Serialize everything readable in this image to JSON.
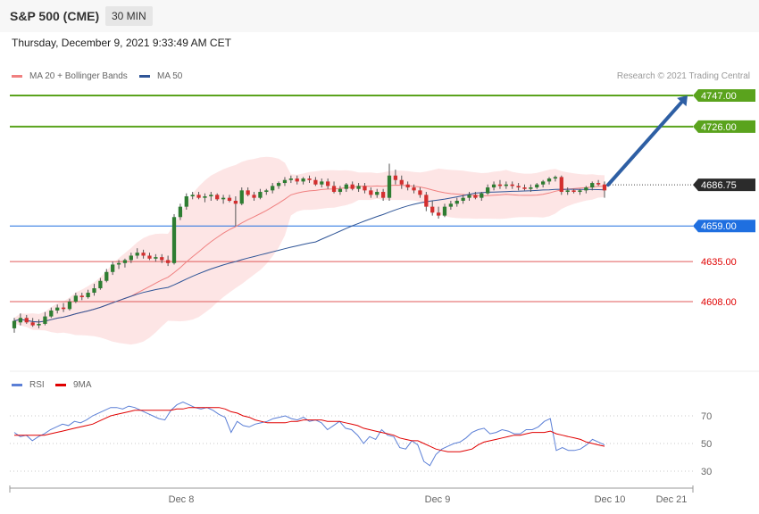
{
  "header": {
    "title": "S&P 500 (CME)",
    "timeframe": "30 MIN"
  },
  "datetime": "Thursday, December 9, 2021 9:33:49 AM CET",
  "credit": "Research © 2021 Trading Central",
  "legend": {
    "ma20": {
      "label": "MA 20 + Bollinger Bands",
      "color": "#f08080"
    },
    "ma50": {
      "label": "MA 50",
      "color": "#2f5597"
    },
    "rsi": {
      "label": "RSI",
      "color": "#5b7fd6"
    },
    "rsi9": {
      "label": "9MA",
      "color": "#e00000"
    }
  },
  "chart_data": [
    {
      "type": "candlestick",
      "current_price": 4686.75,
      "ylim": [
        4560,
        4760
      ],
      "levels": [
        {
          "value": 4747.0,
          "label": "4747.00",
          "kind": "resistance",
          "color": "#5aa31d"
        },
        {
          "value": 4726.0,
          "label": "4726.00",
          "kind": "resistance",
          "color": "#5aa31d"
        },
        {
          "value": 4686.75,
          "label": "4686.75",
          "kind": "current",
          "color": "#333333"
        },
        {
          "value": 4659.0,
          "label": "4659.00",
          "kind": "pivot",
          "color": "#1f6fe0"
        },
        {
          "value": 4635.0,
          "label": "4635.00",
          "kind": "support",
          "color": "#e05a5a"
        },
        {
          "value": 4608.0,
          "label": "4608.00",
          "kind": "support",
          "color": "#e05a5a"
        }
      ],
      "forecast_arrow": {
        "from": 4686.75,
        "to": 4747.0,
        "color": "#2e5fa4"
      },
      "x_ticks": [
        "Dec 8",
        "Dec 9",
        "Dec 10",
        "Dec 21"
      ],
      "candles": [
        [
          4590,
          4597,
          4587,
          4595
        ],
        [
          4594,
          4600,
          4592,
          4597
        ],
        [
          4597,
          4599,
          4593,
          4594
        ],
        [
          4594,
          4597,
          4591,
          4592
        ],
        [
          4592,
          4596,
          4590,
          4593
        ],
        [
          4593,
          4601,
          4592,
          4598
        ],
        [
          4598,
          4604,
          4597,
          4602
        ],
        [
          4602,
          4606,
          4600,
          4604
        ],
        [
          4604,
          4607,
          4601,
          4603
        ],
        [
          4603,
          4610,
          4602,
          4608
        ],
        [
          4608,
          4614,
          4607,
          4612
        ],
        [
          4612,
          4614,
          4609,
          4611
        ],
        [
          4611,
          4616,
          4610,
          4614
        ],
        [
          4614,
          4620,
          4612,
          4617
        ],
        [
          4617,
          4624,
          4616,
          4622
        ],
        [
          4622,
          4630,
          4621,
          4628
        ],
        [
          4628,
          4635,
          4626,
          4633
        ],
        [
          4633,
          4636,
          4630,
          4634
        ],
        [
          4634,
          4637,
          4631,
          4636
        ],
        [
          4636,
          4641,
          4634,
          4639
        ],
        [
          4639,
          4644,
          4637,
          4641
        ],
        [
          4641,
          4643,
          4637,
          4639
        ],
        [
          4639,
          4641,
          4636,
          4637
        ],
        [
          4637,
          4640,
          4635,
          4638
        ],
        [
          4638,
          4640,
          4634,
          4636
        ],
        [
          4636,
          4639,
          4632,
          4634
        ],
        [
          4634,
          4667,
          4633,
          4665
        ],
        [
          4665,
          4674,
          4663,
          4672
        ],
        [
          4672,
          4681,
          4670,
          4679
        ],
        [
          4679,
          4682,
          4677,
          4680
        ],
        [
          4680,
          4682,
          4677,
          4678
        ],
        [
          4678,
          4681,
          4675,
          4679
        ],
        [
          4679,
          4682,
          4676,
          4680
        ],
        [
          4680,
          4681,
          4676,
          4677
        ],
        [
          4677,
          4680,
          4674,
          4678
        ],
        [
          4678,
          4680,
          4675,
          4676
        ],
        [
          4676,
          4679,
          4659,
          4674
        ],
        [
          4674,
          4685,
          4673,
          4683
        ],
        [
          4683,
          4685,
          4679,
          4680
        ],
        [
          4680,
          4682,
          4676,
          4678
        ],
        [
          4678,
          4684,
          4677,
          4682
        ],
        [
          4682,
          4684,
          4680,
          4683
        ],
        [
          4683,
          4688,
          4681,
          4686
        ],
        [
          4686,
          4689,
          4684,
          4688
        ],
        [
          4688,
          4692,
          4686,
          4690
        ],
        [
          4690,
          4693,
          4688,
          4691
        ],
        [
          4691,
          4693,
          4687,
          4689
        ],
        [
          4689,
          4692,
          4687,
          4691
        ],
        [
          4691,
          4693,
          4688,
          4690
        ],
        [
          4690,
          4692,
          4686,
          4687
        ],
        [
          4687,
          4691,
          4685,
          4689
        ],
        [
          4689,
          4691,
          4684,
          4686
        ],
        [
          4686,
          4689,
          4681,
          4682
        ],
        [
          4682,
          4686,
          4680,
          4684
        ],
        [
          4684,
          4688,
          4682,
          4687
        ],
        [
          4687,
          4689,
          4683,
          4684
        ],
        [
          4684,
          4688,
          4682,
          4686
        ],
        [
          4686,
          4688,
          4681,
          4683
        ],
        [
          4683,
          4685,
          4678,
          4680
        ],
        [
          4680,
          4684,
          4678,
          4682
        ],
        [
          4682,
          4684,
          4676,
          4678
        ],
        [
          4678,
          4701,
          4676,
          4693
        ],
        [
          4693,
          4697,
          4687,
          4690
        ],
        [
          4690,
          4693,
          4684,
          4687
        ],
        [
          4687,
          4689,
          4683,
          4685
        ],
        [
          4685,
          4687,
          4681,
          4683
        ],
        [
          4683,
          4685,
          4678,
          4680
        ],
        [
          4680,
          4682,
          4669,
          4672
        ],
        [
          4672,
          4676,
          4666,
          4668
        ],
        [
          4668,
          4672,
          4664,
          4666
        ],
        [
          4666,
          4674,
          4665,
          4672
        ],
        [
          4672,
          4676,
          4670,
          4674
        ],
        [
          4674,
          4678,
          4672,
          4676
        ],
        [
          4676,
          4680,
          4674,
          4678
        ],
        [
          4678,
          4682,
          4676,
          4680
        ],
        [
          4680,
          4682,
          4677,
          4678
        ],
        [
          4678,
          4682,
          4676,
          4681
        ],
        [
          4681,
          4687,
          4680,
          4685
        ],
        [
          4685,
          4689,
          4683,
          4687
        ],
        [
          4687,
          4690,
          4684,
          4686
        ],
        [
          4686,
          4689,
          4684,
          4687
        ],
        [
          4687,
          4689,
          4684,
          4686
        ],
        [
          4686,
          4688,
          4683,
          4685
        ],
        [
          4685,
          4687,
          4683,
          4684
        ],
        [
          4684,
          4687,
          4682,
          4685
        ],
        [
          4685,
          4688,
          4684,
          4687
        ],
        [
          4687,
          4690,
          4685,
          4689
        ],
        [
          4689,
          4692,
          4687,
          4691
        ],
        [
          4691,
          4693,
          4689,
          4692
        ],
        [
          4692,
          4693,
          4680,
          4682
        ],
        [
          4682,
          4685,
          4680,
          4683
        ],
        [
          4683,
          4684,
          4681,
          4682
        ],
        [
          4682,
          4684,
          4680,
          4683
        ],
        [
          4683,
          4686,
          4681,
          4685
        ],
        [
          4685,
          4689,
          4683,
          4688
        ],
        [
          4688,
          4690,
          4686,
          4687
        ],
        [
          4687,
          4689,
          4678,
          4683
        ]
      ]
    },
    {
      "type": "line",
      "title": "RSI",
      "ylim": [
        20,
        80
      ],
      "y_ticks": [
        70,
        50,
        30
      ],
      "series": [
        {
          "name": "RSI",
          "color": "#5b7fd6",
          "values": [
            58,
            55,
            56,
            52,
            55,
            57,
            60,
            62,
            64,
            63,
            66,
            65,
            67,
            70,
            72,
            74,
            76,
            76,
            75,
            77,
            76,
            74,
            72,
            70,
            68,
            67,
            74,
            78,
            80,
            78,
            76,
            75,
            76,
            74,
            71,
            69,
            58,
            66,
            63,
            62,
            64,
            65,
            66,
            68,
            69,
            70,
            68,
            67,
            69,
            66,
            67,
            65,
            60,
            63,
            66,
            61,
            60,
            56,
            50,
            55,
            53,
            60,
            56,
            55,
            47,
            46,
            52,
            49,
            37,
            34,
            42,
            46,
            48,
            50,
            51,
            54,
            58,
            60,
            61,
            57,
            58,
            60,
            59,
            57,
            57,
            60,
            60,
            62,
            66,
            68,
            45,
            47,
            45,
            45,
            46,
            49,
            53,
            51,
            49
          ]
        },
        {
          "name": "9MA",
          "color": "#e00000",
          "values": [
            56,
            56,
            56,
            56,
            56,
            56,
            57,
            58,
            59,
            60,
            61,
            62,
            63,
            64,
            66,
            68,
            70,
            71,
            72,
            73,
            74,
            74,
            74,
            74,
            74,
            74,
            74,
            75,
            75,
            76,
            76,
            76,
            76,
            76,
            76,
            75,
            73,
            72,
            70,
            69,
            67,
            66,
            65,
            65,
            65,
            65,
            66,
            66,
            67,
            67,
            67,
            67,
            66,
            66,
            66,
            65,
            64,
            63,
            61,
            60,
            59,
            58,
            57,
            56,
            54,
            53,
            52,
            52,
            50,
            48,
            46,
            45,
            44,
            44,
            44,
            45,
            46,
            49,
            51,
            52,
            53,
            54,
            55,
            56,
            56,
            57,
            58,
            58,
            58,
            59,
            57,
            56,
            55,
            54,
            53,
            51,
            50,
            49,
            48
          ]
        }
      ]
    }
  ]
}
